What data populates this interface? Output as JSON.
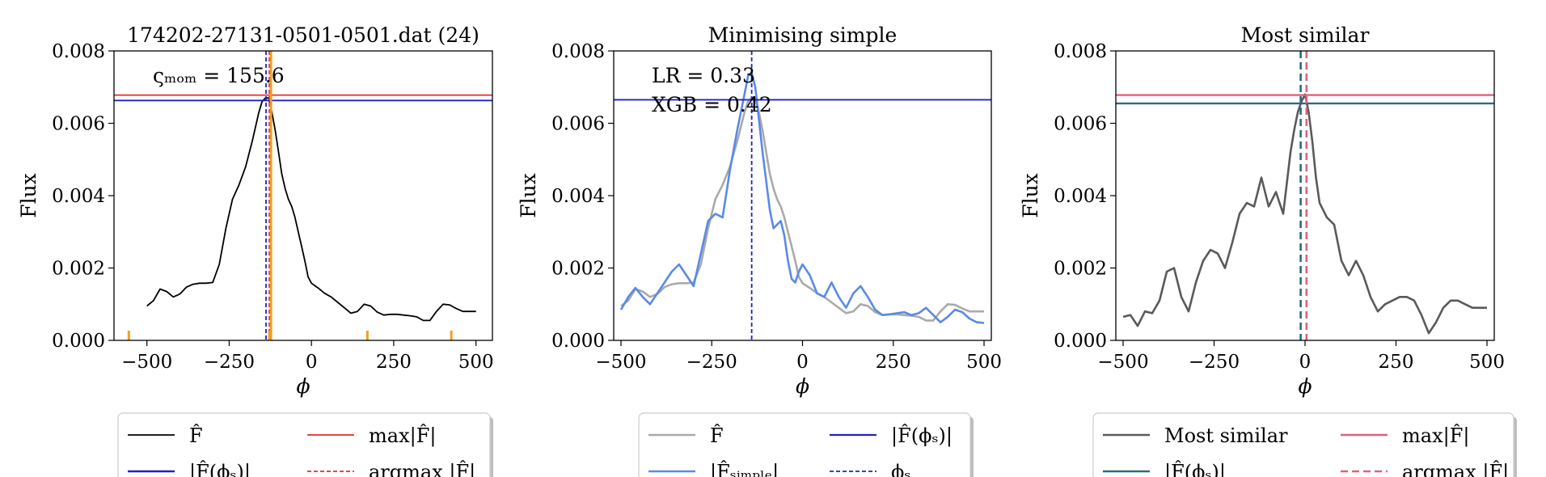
{
  "charts": [
    {
      "title": "174202-27131-0501-0501.dat (24)",
      "xlabel": "ϕ",
      "ylabel": "Flux",
      "annotations": [
        "ςₘₒₘ = 155.6"
      ],
      "legend": [
        "F̂",
        "max|F̂|",
        "|F̂(ϕₛ)|",
        "argmax |F̂|"
      ]
    },
    {
      "title": "Minimising simple",
      "xlabel": "ϕ",
      "ylabel": "Flux",
      "annotations": [
        "LR = 0.33",
        "XGB = 0.42"
      ],
      "legend": [
        "F̂",
        "|F̂(ϕₛ)|",
        "|F̂ₛᵢₘₚₗₑ|",
        "ϕₛ"
      ]
    },
    {
      "title": "Most similar",
      "xlabel": "ϕ",
      "ylabel": "Flux",
      "annotations": [],
      "legend": [
        "Most similar",
        "max|F̂|",
        "|F̂(ϕₛ)|",
        "argmax |F̂|"
      ]
    }
  ],
  "chart_data": [
    {
      "type": "line",
      "xlim": [
        -600,
        550
      ],
      "ylim": [
        0,
        0.008
      ],
      "xticks": [
        "−500",
        "−250",
        "0",
        "250",
        "500"
      ],
      "yticks": [
        "0.000",
        "0.002",
        "0.004",
        "0.006",
        "0.008"
      ],
      "grid": false,
      "series": [
        {
          "name": "F̂",
          "color": "#000000",
          "style": "solid",
          "x": [
            -500,
            -480,
            -460,
            -440,
            -420,
            -400,
            -380,
            -360,
            -340,
            -320,
            -300,
            -280,
            -260,
            -240,
            -220,
            -200,
            -180,
            -160,
            -150,
            -140,
            -130,
            -120,
            -110,
            -100,
            -90,
            -80,
            -70,
            -60,
            -50,
            -40,
            -30,
            -20,
            -10,
            0,
            20,
            40,
            60,
            80,
            100,
            120,
            140,
            160,
            180,
            200,
            220,
            240,
            260,
            280,
            300,
            320,
            340,
            360,
            380,
            400,
            420,
            440,
            460,
            480,
            500
          ],
          "y": [
            0.00095,
            0.0011,
            0.00142,
            0.00135,
            0.0012,
            0.00128,
            0.00147,
            0.00155,
            0.00158,
            0.00158,
            0.0016,
            0.0021,
            0.0031,
            0.0039,
            0.0043,
            0.0048,
            0.0055,
            0.0063,
            0.0066,
            0.0067,
            0.0067,
            0.0063,
            0.0058,
            0.0052,
            0.0046,
            0.0042,
            0.0039,
            0.0037,
            0.0034,
            0.003,
            0.0026,
            0.0022,
            0.00175,
            0.00158,
            0.00145,
            0.0013,
            0.0012,
            0.00105,
            0.0009,
            0.00075,
            0.0008,
            0.001,
            0.00095,
            0.00078,
            0.0007,
            0.00072,
            0.00072,
            0.0007,
            0.00068,
            0.00065,
            0.00055,
            0.00055,
            0.0008,
            0.001,
            0.00098,
            0.00088,
            0.0008,
            0.0008,
            0.0008
          ]
        }
      ],
      "hlines": [
        {
          "y": 0.00678,
          "color": "#e62c2c",
          "style": "solid"
        },
        {
          "y": 0.00663,
          "color": "#1e22c8",
          "style": "solid"
        }
      ],
      "vlines": [
        {
          "x": -138,
          "color": "#1e22c8",
          "style": "dashed"
        },
        {
          "x": -128,
          "color": "#e62c2c",
          "style": "dashed"
        },
        {
          "x": -123,
          "color": "#f0a020",
          "style": "solid"
        }
      ],
      "rug": {
        "x": [
          -555,
          -128,
          170,
          425
        ],
        "color": "#f0a020"
      },
      "legend_ncol": 2
    },
    {
      "type": "line",
      "xlim": [
        -520,
        520
      ],
      "ylim": [
        0,
        0.008
      ],
      "xticks": [
        "−500",
        "−250",
        "0",
        "250",
        "500"
      ],
      "yticks": [
        "0.000",
        "0.002",
        "0.004",
        "0.006",
        "0.008"
      ],
      "grid": false,
      "series": [
        {
          "name": "F̂",
          "color": "#aaaaaa",
          "style": "solid",
          "x": [
            -500,
            -480,
            -460,
            -440,
            -420,
            -400,
            -380,
            -360,
            -340,
            -320,
            -300,
            -280,
            -260,
            -240,
            -220,
            -200,
            -180,
            -160,
            -150,
            -140,
            -130,
            -120,
            -110,
            -100,
            -90,
            -80,
            -70,
            -60,
            -50,
            -40,
            -30,
            -20,
            -10,
            0,
            20,
            40,
            60,
            80,
            100,
            120,
            140,
            160,
            180,
            200,
            220,
            240,
            260,
            280,
            300,
            320,
            340,
            360,
            380,
            400,
            420,
            440,
            460,
            480,
            500
          ],
          "y": [
            0.00095,
            0.0011,
            0.00142,
            0.00135,
            0.0012,
            0.00128,
            0.00147,
            0.00155,
            0.00158,
            0.00158,
            0.0016,
            0.0021,
            0.0031,
            0.0039,
            0.0043,
            0.0048,
            0.0055,
            0.0063,
            0.0066,
            0.0067,
            0.0067,
            0.0063,
            0.0058,
            0.0052,
            0.0046,
            0.0042,
            0.0039,
            0.0037,
            0.0034,
            0.003,
            0.0026,
            0.0022,
            0.00175,
            0.00158,
            0.00145,
            0.0013,
            0.0012,
            0.00105,
            0.0009,
            0.00075,
            0.0008,
            0.001,
            0.00095,
            0.00078,
            0.0007,
            0.00072,
            0.00072,
            0.0007,
            0.00068,
            0.00065,
            0.00055,
            0.00055,
            0.0008,
            0.001,
            0.00098,
            0.00088,
            0.0008,
            0.0008,
            0.0008
          ]
        },
        {
          "name": "|F̂ₛᵢₘₚₗₑ|",
          "color": "#5a8ae6",
          "style": "solid",
          "x": [
            -500,
            -480,
            -460,
            -440,
            -420,
            -400,
            -380,
            -360,
            -340,
            -320,
            -300,
            -280,
            -260,
            -240,
            -220,
            -200,
            -180,
            -160,
            -150,
            -140,
            -130,
            -120,
            -110,
            -100,
            -90,
            -80,
            -70,
            -60,
            -50,
            -40,
            -30,
            -20,
            -10,
            0,
            20,
            40,
            60,
            80,
            100,
            120,
            140,
            160,
            180,
            200,
            220,
            240,
            260,
            280,
            300,
            320,
            340,
            360,
            380,
            400,
            420,
            440,
            460,
            480,
            500
          ],
          "y": [
            0.00085,
            0.0012,
            0.00145,
            0.0012,
            0.001,
            0.0013,
            0.0016,
            0.0019,
            0.0021,
            0.0018,
            0.0015,
            0.0024,
            0.0033,
            0.0035,
            0.0034,
            0.0047,
            0.0058,
            0.0068,
            0.0073,
            0.0074,
            0.007,
            0.0061,
            0.0052,
            0.0044,
            0.0036,
            0.0031,
            0.0032,
            0.0033,
            0.0029,
            0.0022,
            0.0017,
            0.0016,
            0.0019,
            0.0021,
            0.0018,
            0.0013,
            0.0012,
            0.0016,
            0.0012,
            0.0009,
            0.0013,
            0.0015,
            0.0012,
            0.00085,
            0.0007,
            0.00072,
            0.00075,
            0.00078,
            0.0007,
            0.00075,
            0.0009,
            0.0007,
            0.0005,
            0.00065,
            0.00085,
            0.00078,
            0.0006,
            0.0005,
            0.00048
          ]
        }
      ],
      "hlines": [
        {
          "y": 0.00665,
          "color": "#1e22c8",
          "style": "solid"
        }
      ],
      "vlines": [
        {
          "x": -140,
          "color": "#1e22c8",
          "style": "dashed"
        }
      ],
      "legend_ncol": 2
    },
    {
      "type": "line",
      "xlim": [
        -520,
        520
      ],
      "ylim": [
        0,
        0.008
      ],
      "xticks": [
        "−500",
        "−250",
        "0",
        "250",
        "500"
      ],
      "yticks": [
        "0.000",
        "0.002",
        "0.004",
        "0.006",
        "0.008"
      ],
      "grid": false,
      "series": [
        {
          "name": "Most similar",
          "color": "#5a5a5a",
          "style": "solid",
          "x": [
            -500,
            -480,
            -460,
            -440,
            -420,
            -400,
            -380,
            -360,
            -340,
            -320,
            -300,
            -280,
            -260,
            -240,
            -220,
            -200,
            -180,
            -160,
            -140,
            -120,
            -100,
            -80,
            -60,
            -40,
            -30,
            -20,
            -10,
            0,
            10,
            20,
            30,
            40,
            60,
            80,
            100,
            120,
            140,
            160,
            180,
            200,
            220,
            240,
            260,
            280,
            300,
            320,
            340,
            360,
            380,
            400,
            420,
            440,
            460,
            480,
            500
          ],
          "y": [
            0.00065,
            0.0007,
            0.0004,
            0.0008,
            0.00075,
            0.0011,
            0.0019,
            0.002,
            0.0012,
            0.0008,
            0.0016,
            0.0022,
            0.0025,
            0.0024,
            0.002,
            0.0027,
            0.0035,
            0.0038,
            0.0037,
            0.0045,
            0.0037,
            0.0041,
            0.0035,
            0.0052,
            0.0058,
            0.0063,
            0.0066,
            0.0068,
            0.0063,
            0.0055,
            0.0045,
            0.0038,
            0.0034,
            0.0032,
            0.0022,
            0.0018,
            0.0022,
            0.0018,
            0.0012,
            0.0008,
            0.001,
            0.0011,
            0.0012,
            0.0012,
            0.0011,
            0.0007,
            0.0002,
            0.0005,
            0.0009,
            0.0011,
            0.0011,
            0.001,
            0.0009,
            0.0009,
            0.0009
          ]
        }
      ],
      "hlines": [
        {
          "y": 0.00678,
          "color": "#e06080",
          "style": "solid"
        },
        {
          "y": 0.00655,
          "color": "#2a6a84",
          "style": "solid"
        }
      ],
      "vlines": [
        {
          "x": -12,
          "color": "#2a6a84",
          "style": "dashed"
        },
        {
          "x": 4,
          "color": "#e06080",
          "style": "dashed"
        }
      ],
      "legend_ncol": 2
    }
  ]
}
